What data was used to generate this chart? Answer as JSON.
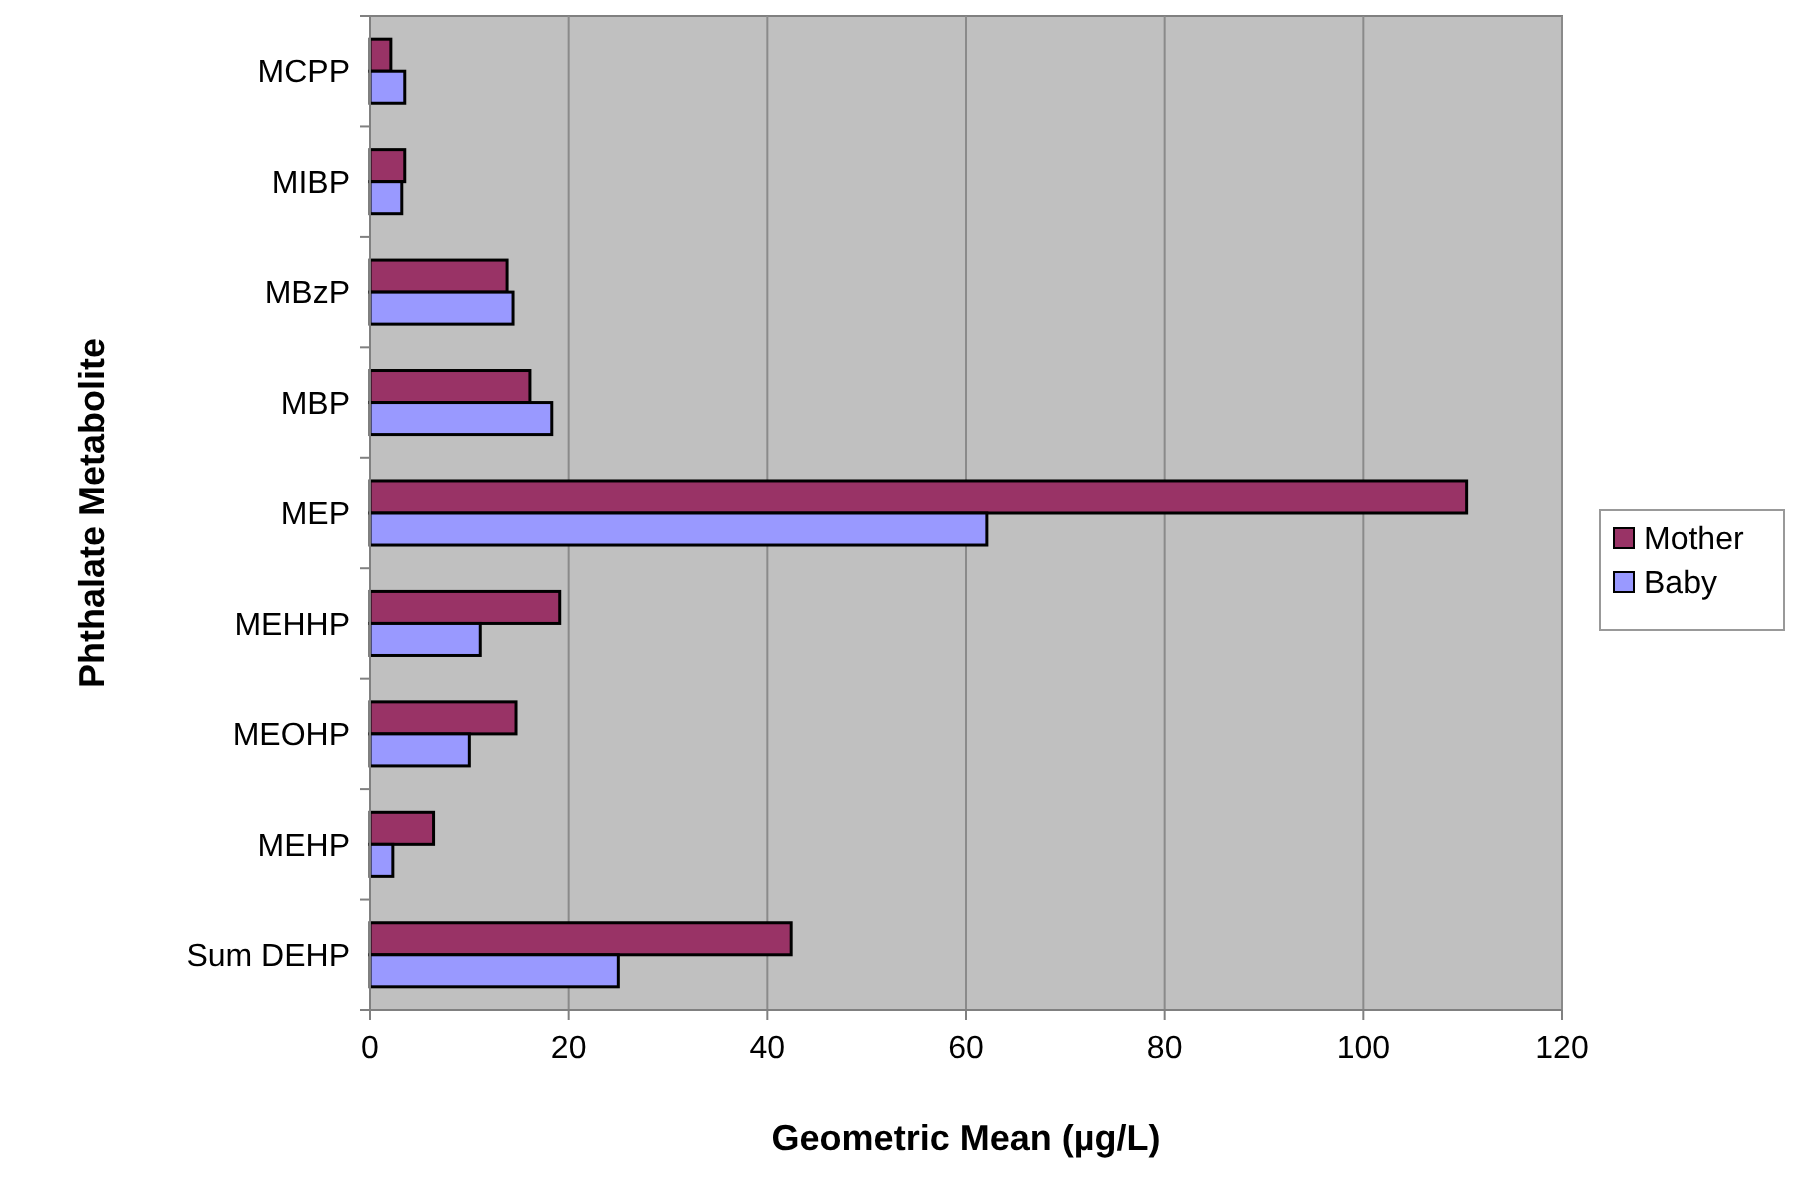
{
  "chart_data": {
    "type": "bar",
    "orientation": "horizontal",
    "xlabel": "Geometric Mean (µg/L)",
    "ylabel": "Phthalate Metabolite",
    "categories": [
      "MCPP",
      "MIBP",
      "MBzP",
      "MBP",
      "MEP",
      "MEHHP",
      "MEOHP",
      "MEHP",
      "Sum DEHP"
    ],
    "series": [
      {
        "name": "Mother",
        "color": "#993366",
        "values": [
          2.1,
          3.5,
          13.8,
          16.1,
          110.4,
          19.1,
          14.7,
          6.4,
          42.4
        ]
      },
      {
        "name": "Baby",
        "color": "#9999ff",
        "values": [
          3.5,
          3.2,
          14.4,
          18.3,
          62.1,
          11.1,
          10.0,
          2.3,
          25.0
        ]
      }
    ],
    "xlim": [
      0,
      120
    ],
    "xticks": [
      0,
      20,
      40,
      60,
      80,
      100,
      120
    ],
    "grid": "x",
    "legend": "right"
  }
}
